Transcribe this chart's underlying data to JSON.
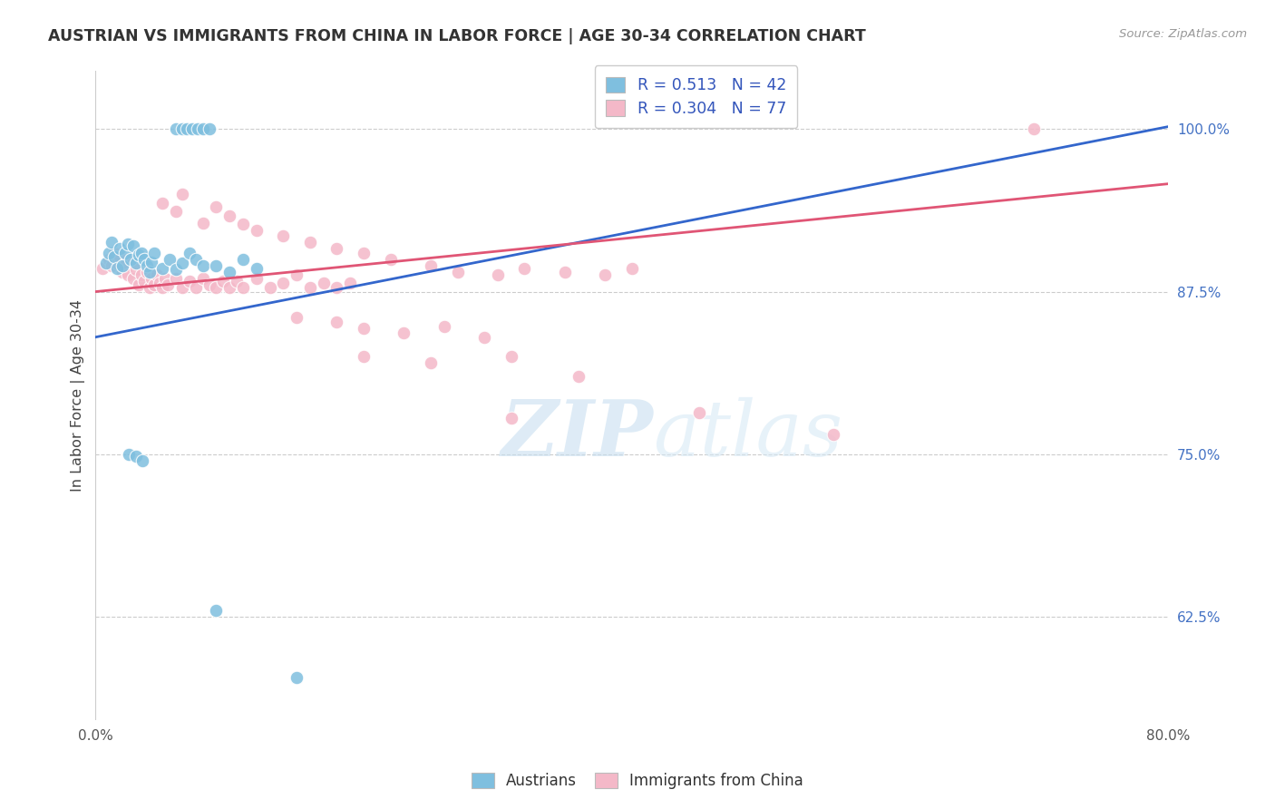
{
  "title": "AUSTRIAN VS IMMIGRANTS FROM CHINA IN LABOR FORCE | AGE 30-34 CORRELATION CHART",
  "source": "Source: ZipAtlas.com",
  "ylabel": "In Labor Force | Age 30-34",
  "ytick_labels": [
    "100.0%",
    "87.5%",
    "75.0%",
    "62.5%"
  ],
  "ytick_values": [
    1.0,
    0.875,
    0.75,
    0.625
  ],
  "xmin": 0.0,
  "xmax": 0.8,
  "ymin": 0.545,
  "ymax": 1.045,
  "legend_R_blue": "0.513",
  "legend_N_blue": "42",
  "legend_R_pink": "0.304",
  "legend_N_pink": "77",
  "blue_color": "#7fbfdf",
  "pink_color": "#f4b8c8",
  "blue_line_color": "#3366cc",
  "pink_line_color": "#e05575",
  "blue_line_x0": 0.0,
  "blue_line_y0": 0.84,
  "blue_line_x1": 0.8,
  "blue_line_y1": 1.002,
  "pink_line_x0": 0.0,
  "pink_line_y0": 0.875,
  "pink_line_x1": 0.8,
  "pink_line_y1": 0.958,
  "blue_scatter": [
    [
      0.008,
      0.897
    ],
    [
      0.01,
      0.905
    ],
    [
      0.012,
      0.913
    ],
    [
      0.014,
      0.902
    ],
    [
      0.016,
      0.893
    ],
    [
      0.018,
      0.908
    ],
    [
      0.02,
      0.895
    ],
    [
      0.022,
      0.905
    ],
    [
      0.024,
      0.912
    ],
    [
      0.026,
      0.9
    ],
    [
      0.028,
      0.91
    ],
    [
      0.03,
      0.897
    ],
    [
      0.032,
      0.903
    ],
    [
      0.034,
      0.905
    ],
    [
      0.036,
      0.9
    ],
    [
      0.038,
      0.895
    ],
    [
      0.04,
      0.89
    ],
    [
      0.042,
      0.898
    ],
    [
      0.044,
      0.905
    ],
    [
      0.05,
      0.893
    ],
    [
      0.055,
      0.9
    ],
    [
      0.06,
      0.892
    ],
    [
      0.065,
      0.897
    ],
    [
      0.07,
      0.905
    ],
    [
      0.075,
      0.9
    ],
    [
      0.08,
      0.895
    ],
    [
      0.09,
      0.895
    ],
    [
      0.1,
      0.89
    ],
    [
      0.11,
      0.9
    ],
    [
      0.12,
      0.893
    ],
    [
      0.06,
      1.0
    ],
    [
      0.065,
      1.0
    ],
    [
      0.068,
      1.0
    ],
    [
      0.072,
      1.0
    ],
    [
      0.076,
      1.0
    ],
    [
      0.08,
      1.0
    ],
    [
      0.085,
      1.0
    ],
    [
      0.025,
      0.75
    ],
    [
      0.03,
      0.748
    ],
    [
      0.035,
      0.745
    ],
    [
      0.09,
      0.63
    ],
    [
      0.15,
      0.578
    ]
  ],
  "pink_scatter": [
    [
      0.005,
      0.893
    ],
    [
      0.01,
      0.9
    ],
    [
      0.012,
      0.895
    ],
    [
      0.014,
      0.905
    ],
    [
      0.016,
      0.897
    ],
    [
      0.018,
      0.902
    ],
    [
      0.02,
      0.89
    ],
    [
      0.022,
      0.895
    ],
    [
      0.024,
      0.888
    ],
    [
      0.026,
      0.9
    ],
    [
      0.028,
      0.885
    ],
    [
      0.03,
      0.892
    ],
    [
      0.032,
      0.88
    ],
    [
      0.034,
      0.888
    ],
    [
      0.036,
      0.883
    ],
    [
      0.038,
      0.89
    ],
    [
      0.04,
      0.878
    ],
    [
      0.042,
      0.885
    ],
    [
      0.044,
      0.88
    ],
    [
      0.046,
      0.888
    ],
    [
      0.048,
      0.882
    ],
    [
      0.05,
      0.878
    ],
    [
      0.052,
      0.885
    ],
    [
      0.054,
      0.88
    ],
    [
      0.06,
      0.885
    ],
    [
      0.065,
      0.878
    ],
    [
      0.07,
      0.883
    ],
    [
      0.075,
      0.878
    ],
    [
      0.08,
      0.885
    ],
    [
      0.085,
      0.88
    ],
    [
      0.09,
      0.878
    ],
    [
      0.095,
      0.883
    ],
    [
      0.1,
      0.878
    ],
    [
      0.105,
      0.883
    ],
    [
      0.11,
      0.878
    ],
    [
      0.12,
      0.885
    ],
    [
      0.13,
      0.878
    ],
    [
      0.14,
      0.882
    ],
    [
      0.15,
      0.888
    ],
    [
      0.16,
      0.878
    ],
    [
      0.17,
      0.882
    ],
    [
      0.18,
      0.878
    ],
    [
      0.19,
      0.882
    ],
    [
      0.05,
      0.943
    ],
    [
      0.06,
      0.937
    ],
    [
      0.065,
      0.95
    ],
    [
      0.08,
      0.928
    ],
    [
      0.09,
      0.94
    ],
    [
      0.1,
      0.933
    ],
    [
      0.11,
      0.927
    ],
    [
      0.12,
      0.922
    ],
    [
      0.14,
      0.918
    ],
    [
      0.16,
      0.913
    ],
    [
      0.18,
      0.908
    ],
    [
      0.2,
      0.905
    ],
    [
      0.22,
      0.9
    ],
    [
      0.25,
      0.895
    ],
    [
      0.27,
      0.89
    ],
    [
      0.3,
      0.888
    ],
    [
      0.32,
      0.893
    ],
    [
      0.35,
      0.89
    ],
    [
      0.38,
      0.888
    ],
    [
      0.4,
      0.893
    ],
    [
      0.15,
      0.855
    ],
    [
      0.18,
      0.852
    ],
    [
      0.2,
      0.847
    ],
    [
      0.23,
      0.843
    ],
    [
      0.26,
      0.848
    ],
    [
      0.29,
      0.84
    ],
    [
      0.2,
      0.825
    ],
    [
      0.25,
      0.82
    ],
    [
      0.31,
      0.825
    ],
    [
      0.36,
      0.81
    ],
    [
      0.31,
      0.778
    ],
    [
      0.45,
      0.782
    ],
    [
      0.55,
      0.765
    ],
    [
      0.7,
      1.0
    ]
  ]
}
